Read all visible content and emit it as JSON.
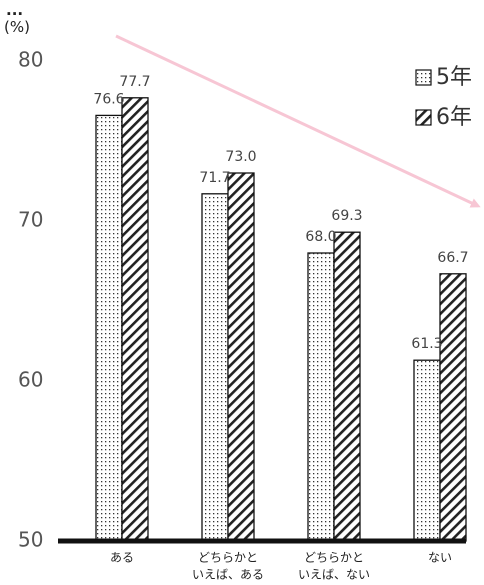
{
  "chart_data": {
    "type": "bar",
    "title": "...",
    "ylabel": "(%)",
    "ylim": [
      50,
      80
    ],
    "yticks": [
      "50",
      "60",
      "70",
      "80"
    ],
    "categories": [
      [
        "ある"
      ],
      [
        "どちらかと",
        "いえば、ある"
      ],
      [
        "どちらかと",
        "いえば、ない"
      ],
      [
        "ない"
      ]
    ],
    "series": [
      {
        "name": "5年",
        "values": [
          76.6,
          71.7,
          68.0,
          61.3
        ],
        "labels": [
          "76.6",
          "71.7",
          "68.0",
          "61.3"
        ],
        "pattern": "dots"
      },
      {
        "name": "6年",
        "values": [
          77.7,
          73.0,
          69.3,
          66.7
        ],
        "labels": [
          "77.7",
          "73.0",
          "69.3",
          "66.7"
        ],
        "pattern": "hatch"
      }
    ],
    "legend": "top-right",
    "annotation": {
      "type": "trend-arrow",
      "color": "#f7c6d4"
    },
    "grid": false
  }
}
